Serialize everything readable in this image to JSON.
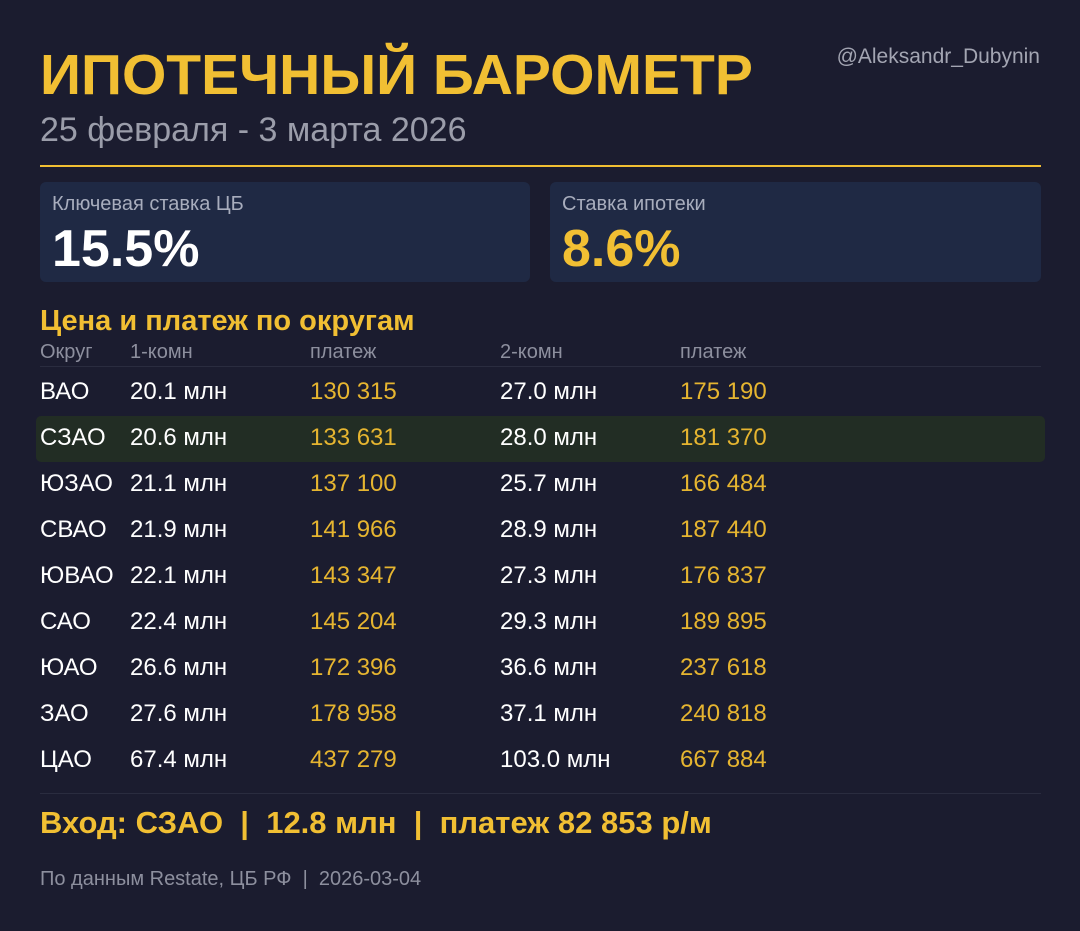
{
  "header": {
    "title": "ИПОТЕЧНЫЙ БАРОМЕТР",
    "period": "25 февраля - 3 марта 2026",
    "handle": "@Aleksandr_Dubynin"
  },
  "cards": {
    "key_rate": {
      "label": "Ключевая ставка ЦБ",
      "value": "15.5%"
    },
    "mortgage_rate": {
      "label": "Ставка ипотеки",
      "value": "8.6%"
    }
  },
  "colors": {
    "accent": "#f1bf33",
    "background": "#1b1c2f",
    "card": "#1f2944",
    "highlight_row": "#222d24"
  },
  "table": {
    "title": "Цена и платеж по округам",
    "columns": [
      "Округ",
      "1-комн",
      "платеж",
      "2-комн",
      "платеж"
    ],
    "highlighted_district": "СЗАО",
    "rows": [
      [
        "ВАО",
        "20.1 млн",
        "130 315",
        "27.0 млн",
        "175 190"
      ],
      [
        "СЗАО",
        "20.6 млн",
        "133 631",
        "28.0 млн",
        "181 370"
      ],
      [
        "ЮЗАО",
        "21.1 млн",
        "137 100",
        "25.7 млн",
        "166 484"
      ],
      [
        "СВАО",
        "21.9 млн",
        "141 966",
        "28.9 млн",
        "187 440"
      ],
      [
        "ЮВАО",
        "22.1 млн",
        "143 347",
        "27.3 млн",
        "176 837"
      ],
      [
        "САО",
        "22.4 млн",
        "145 204",
        "29.3 млн",
        "189 895"
      ],
      [
        "ЮАО",
        "26.6 млн",
        "172 396",
        "36.6 млн",
        "237 618"
      ],
      [
        "ЗАО",
        "27.6 млн",
        "178 958",
        "37.1 млн",
        "240 818"
      ],
      [
        "ЦАО",
        "67.4 млн",
        "437 279",
        "103.0 млн",
        "667 884"
      ]
    ]
  },
  "entry": {
    "text": "Вход: СЗАО  |  12.8 млн  |  платеж 82 853 р/м"
  },
  "footer": {
    "text": "По данным Restate, ЦБ РФ  |  2026-03-04"
  }
}
